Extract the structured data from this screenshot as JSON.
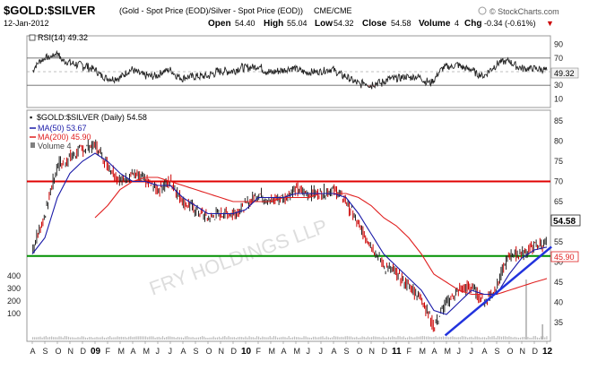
{
  "header": {
    "symbol": "$GOLD:$SILVER",
    "description": "(Gold - Spot Price (EOD)/Silver - Spot Price (EOD))",
    "exchange": "CME/CME",
    "date": "12-Jan-2012",
    "source": "© StockCharts.com",
    "quote": {
      "open_label": "Open",
      "open": "54.40",
      "high_label": "High",
      "high": "55.04",
      "low_label": "Low",
      "low": "54.32",
      "close_label": "Close",
      "close": "54.58",
      "volume_label": "Volume",
      "volume": "4",
      "chg_label": "Chg",
      "chg": "-0.34 (-0.61%)",
      "chg_arrow": "▼"
    }
  },
  "watermark": "FRY HOLDINGS LLP",
  "colors": {
    "price": "#222222",
    "down": "#cc0000",
    "ma50": "#1a1aa8",
    "ma200": "#e02020",
    "hline_red": "#e00000",
    "hline_green": "#009000",
    "trendline": "#2233dd",
    "rsi": "#222222",
    "rsi_fill_up": "#a0a0a0",
    "rsi_fill_down": "#c08080"
  },
  "rsi_panel": {
    "label": "RSI(14) 49.32",
    "last_value_badge": "49.32",
    "ticks": [
      90,
      70,
      50,
      30,
      10
    ],
    "ylim": [
      0,
      100
    ],
    "overbought": 70,
    "oversold": 30
  },
  "price_panel": {
    "label": "$GOLD:$SILVER (Daily) 54.58",
    "legend": [
      {
        "name": "MA(50) 53.67",
        "color": "#1a1aa8"
      },
      {
        "name": "MA(200) 45.90",
        "color": "#e02020"
      },
      {
        "name": "Volume 4",
        "color": "#808080"
      }
    ],
    "last_value_badge": "54.58",
    "ma200_badge": "45.90",
    "right_ticks": [
      85,
      80,
      75,
      70,
      65,
      60,
      55,
      50,
      45,
      40,
      35
    ],
    "left_volume_ticks": [
      400,
      300,
      200,
      100
    ],
    "ylim": [
      31,
      87
    ],
    "hlines": [
      70,
      51.5
    ],
    "trendline": {
      "from": [
        "2011-04-28",
        31.8
      ],
      "to": [
        "2012-01-12",
        53.8
      ]
    }
  },
  "x_axis": {
    "labels": [
      "A",
      "S",
      "O",
      "N",
      "D",
      "09",
      "F",
      "M",
      "A",
      "M",
      "J",
      "J",
      "A",
      "S",
      "O",
      "N",
      "D",
      "10",
      "F",
      "M",
      "A",
      "M",
      "J",
      "J",
      "A",
      "S",
      "O",
      "N",
      "D",
      "11",
      "F",
      "M",
      "A",
      "M",
      "J",
      "J",
      "A",
      "S",
      "O",
      "N",
      "D",
      "12"
    ],
    "years": [
      "09",
      "10",
      "11",
      "12"
    ]
  },
  "chart_data": {
    "type": "line",
    "title": "$GOLD:$SILVER (Daily)",
    "x": [
      "2008-08",
      "2008-09",
      "2008-10",
      "2008-11",
      "2008-12",
      "2009-01",
      "2009-02",
      "2009-03",
      "2009-04",
      "2009-05",
      "2009-06",
      "2009-07",
      "2009-08",
      "2009-09",
      "2009-10",
      "2009-11",
      "2009-12",
      "2010-01",
      "2010-02",
      "2010-03",
      "2010-04",
      "2010-05",
      "2010-06",
      "2010-07",
      "2010-08",
      "2010-09",
      "2010-10",
      "2010-11",
      "2010-12",
      "2011-01",
      "2011-02",
      "2011-03",
      "2011-04",
      "2011-05",
      "2011-06",
      "2011-07",
      "2011-08",
      "2011-09",
      "2011-10",
      "2011-11",
      "2011-12",
      "2012-01"
    ],
    "series": [
      {
        "name": "$GOLD:$SILVER",
        "values": [
          53,
          62,
          74,
          76,
          78,
          79,
          74,
          70,
          72,
          70,
          68,
          70,
          65,
          63,
          61,
          62,
          62,
          64,
          67,
          65,
          66,
          68,
          67,
          67,
          68,
          65,
          59,
          54,
          49,
          47,
          44,
          41,
          34,
          40,
          43,
          44,
          40,
          44,
          52,
          52,
          54,
          54.6
        ]
      },
      {
        "name": "MA(50)",
        "values": [
          52,
          56,
          66,
          72,
          75,
          77,
          75,
          72,
          70,
          70,
          69,
          69,
          66,
          64,
          62,
          62,
          62,
          63,
          66,
          66,
          66,
          67,
          67,
          67,
          67,
          66,
          62,
          57,
          52,
          49,
          46,
          43,
          38,
          37,
          40,
          43,
          42,
          42,
          47,
          51,
          53,
          53.7
        ]
      },
      {
        "name": "MA(200)",
        "values": [
          null,
          null,
          null,
          null,
          null,
          61,
          64,
          68,
          70,
          71,
          71,
          70,
          69,
          68,
          67,
          66,
          65,
          65,
          65,
          65,
          66,
          66,
          66,
          67,
          67,
          67,
          66,
          64,
          61,
          59,
          56,
          52,
          47,
          45,
          43,
          42,
          42,
          42,
          43,
          44,
          45,
          45.9
        ]
      }
    ],
    "xlabel": "",
    "ylabel": "",
    "ylim": [
      31,
      87
    ],
    "grid": false,
    "legend_position": "top-left"
  }
}
